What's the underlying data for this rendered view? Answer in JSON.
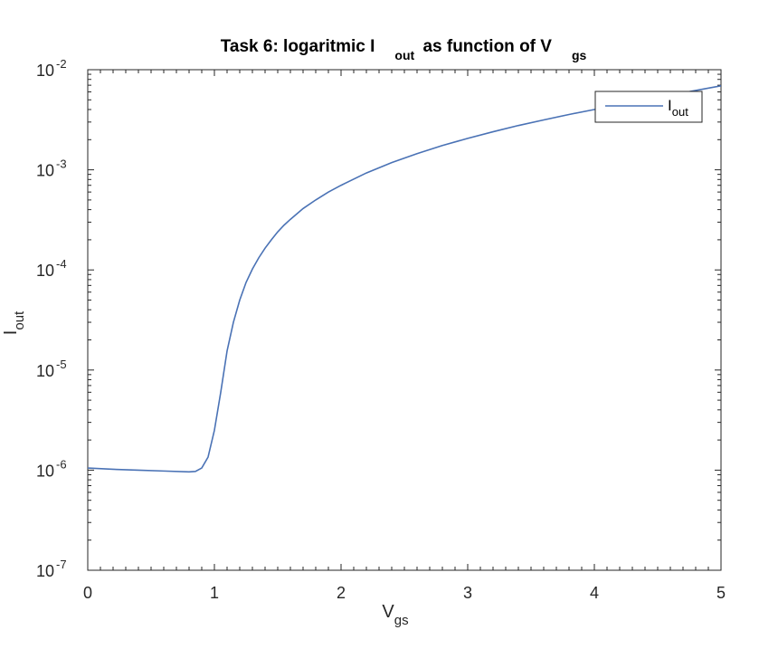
{
  "chart_data": {
    "type": "line",
    "title": {
      "main": "Task 6: logaritmic I",
      "sub1": "out",
      "mid": " as function of V",
      "sub2": "gs"
    },
    "xlabel": {
      "main": "V",
      "sub": "gs"
    },
    "ylabel": {
      "main": "I",
      "sub": "out"
    },
    "xlim": [
      0,
      5
    ],
    "ylim": [
      1e-07,
      0.01
    ],
    "yscale": "log",
    "xticks": [
      {
        "value": 0,
        "label": "0"
      },
      {
        "value": 1,
        "label": "1"
      },
      {
        "value": 2,
        "label": "2"
      },
      {
        "value": 3,
        "label": "3"
      },
      {
        "value": 4,
        "label": "4"
      },
      {
        "value": 5,
        "label": "5"
      }
    ],
    "yticks": [
      {
        "value": 1e-07,
        "base": "10",
        "exp": "-7"
      },
      {
        "value": 1e-06,
        "base": "10",
        "exp": "-6"
      },
      {
        "value": 1e-05,
        "base": "10",
        "exp": "-5"
      },
      {
        "value": 0.0001,
        "base": "10",
        "exp": "-4"
      },
      {
        "value": 0.001,
        "base": "10",
        "exp": "-3"
      },
      {
        "value": 0.01,
        "base": "10",
        "exp": "-2"
      }
    ],
    "grid": false,
    "box": true,
    "legend": {
      "location": "top-right",
      "entries": [
        {
          "main": "I",
          "sub": "out"
        }
      ]
    },
    "series": [
      {
        "name": "I_out",
        "color": "#4a72b5",
        "x": [
          0,
          0.2,
          0.4,
          0.6,
          0.8,
          0.85,
          0.9,
          0.95,
          1.0,
          1.05,
          1.1,
          1.15,
          1.2,
          1.25,
          1.3,
          1.35,
          1.4,
          1.45,
          1.5,
          1.55,
          1.6,
          1.7,
          1.8,
          1.9,
          2.0,
          2.2,
          2.4,
          2.6,
          2.8,
          3.0,
          3.2,
          3.4,
          3.6,
          3.8,
          4.0,
          4.2,
          4.4,
          4.6,
          4.8,
          5.0
        ],
        "y": [
          1.05e-06,
          1.02e-06,
          1e-06,
          9.8e-07,
          9.6e-07,
          9.7e-07,
          1.05e-06,
          1.35e-06,
          2.5e-06,
          6e-06,
          1.55e-05,
          3e-05,
          5e-05,
          7.5e-05,
          0.000102,
          0.000132,
          0.000165,
          0.0002,
          0.00024,
          0.00028,
          0.00032,
          0.00041,
          0.0005,
          0.0006,
          0.0007,
          0.00093,
          0.00118,
          0.00145,
          0.00175,
          0.00206,
          0.0024,
          0.00277,
          0.00315,
          0.00357,
          0.004,
          0.0045,
          0.005,
          0.0056,
          0.0062,
          0.0069
        ]
      }
    ]
  }
}
